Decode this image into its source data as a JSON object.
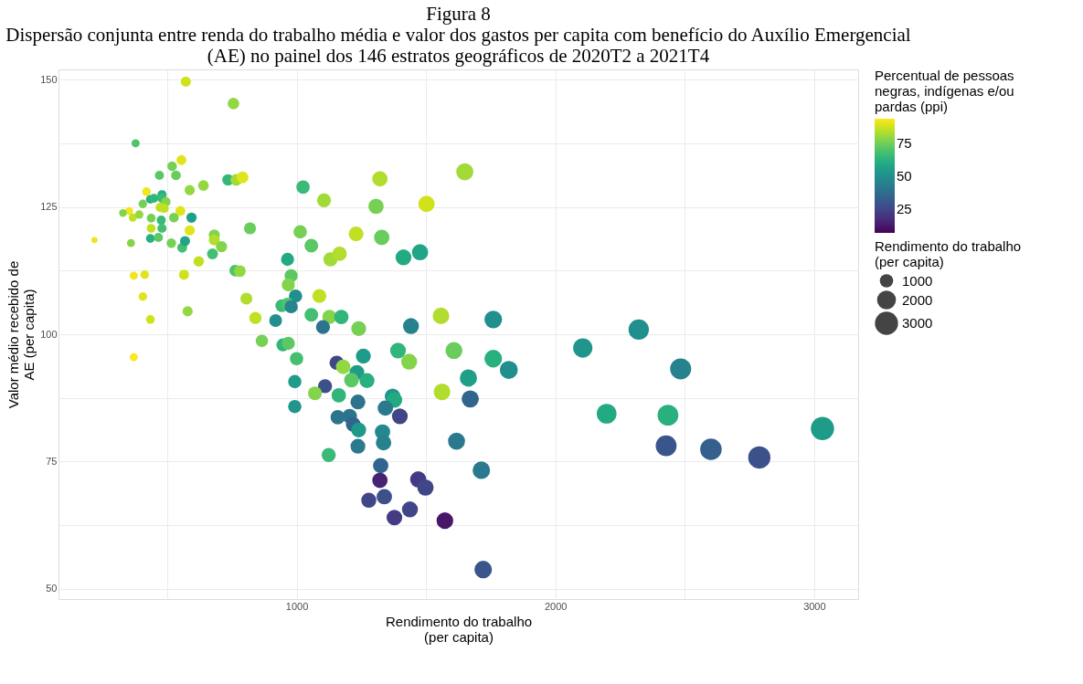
{
  "chart_data": {
    "type": "bubble",
    "title": "Figura 8",
    "subtitle": "Dispersão conjunta entre renda do trabalho média e valor dos gastos per capita com benefício do Auxílio Emergencial (AE) no painel dos 146 estratos geográficos de 2020T2 a 2021T4",
    "xlabel": "Rendimento do trabalho (per capita)",
    "ylabel": "Valor médio recebido de AE (per capita)",
    "legend_title": "Rendimento do trabalho (per capita)",
    "clabel": "Percentual de pessoas negras, indígenas e/ou pardas (ppi)",
    "x": [
      219,
      572,
      756,
      378,
      555,
      519,
      470,
      534,
      640,
      587,
      735,
      767,
      791,
      420,
      406,
      435,
      449,
      480,
      480,
      495,
      473,
      488,
      551,
      353,
      329,
      367,
      392,
      438,
      526,
      594,
      477,
      438,
      480,
      587,
      360,
      435,
      466,
      516,
      558,
      569,
      682,
      682,
      710,
      622,
      675,
      820,
      763,
      781,
      371,
      413,
      565,
      406,
      579,
      435,
      371,
      806,
      841,
      965,
      979,
      968,
      996,
      943,
      965,
      979,
      919,
      866,
      947,
      968,
      1000,
      1025,
      1106,
      1322,
      1650,
      1307,
      1502,
      1014,
      1057,
      1230,
      1329,
      1131,
      1166,
      1413,
      1477,
      1088,
      1057,
      1127,
      1173,
      1102,
      1240,
      1442,
      1558,
      1760,
      1258,
      1392,
      1435,
      1608,
      1760,
      1155,
      1180,
      1233,
      1212,
      1272,
      993,
      1110,
      1071,
      1163,
      1664,
      1562,
      993,
      1237,
      1159,
      1205,
      1219,
      1240,
      1371,
      1378,
      1343,
      1399,
      1124,
      1332,
      1336,
      1237,
      1671,
      1618,
      1714,
      1325,
      1322,
      1470,
      1498,
      1279,
      1339,
      1438,
      1378,
      1573,
      1721,
      1820,
      2322,
      2106,
      2484,
      2198,
      2435,
      3032,
      2428,
      2601,
      2788
    ],
    "values": [
      118.5,
      149.6,
      145.3,
      137.5,
      134.2,
      133,
      131.2,
      131.2,
      129.2,
      128.3,
      130.3,
      130.3,
      130.8,
      128,
      125.6,
      126.5,
      126.7,
      127.4,
      126.7,
      126,
      124.9,
      124.7,
      124.2,
      124.2,
      123.8,
      122.9,
      123.5,
      122.8,
      122.9,
      122.9,
      122.4,
      120.8,
      120.8,
      120.4,
      117.9,
      118.8,
      119,
      117.9,
      117,
      118.3,
      119.5,
      118.5,
      117.2,
      114.3,
      115.8,
      120.8,
      112.5,
      112.4,
      111.5,
      111.7,
      111.7,
      107.4,
      104.5,
      102.9,
      95.5,
      107,
      103.2,
      114.7,
      111.5,
      109.7,
      107.5,
      105.6,
      105.9,
      105.4,
      102.7,
      98.7,
      97.9,
      98.2,
      95.2,
      128.9,
      126.3,
      130.5,
      131.9,
      125.1,
      125.6,
      120.1,
      117.4,
      119.7,
      119,
      114.7,
      115.8,
      115.1,
      116.1,
      107.5,
      103.8,
      103.4,
      103.4,
      101.4,
      101.1,
      101.6,
      103.6,
      102.9,
      95.7,
      96.8,
      94.6,
      96.8,
      95.2,
      94.4,
      93.6,
      92.5,
      91,
      90.9,
      90.7,
      89.8,
      88.4,
      88,
      91.4,
      88.7,
      85.8,
      86.7,
      83.7,
      83.9,
      82.3,
      81.2,
      87.8,
      87.1,
      85.5,
      83.9,
      76.3,
      80.8,
      78.7,
      78,
      87.3,
      79,
      73.3,
      74.2,
      71.3,
      71.5,
      69.9,
      67.4,
      68.1,
      65.6,
      64,
      63.4,
      53.8,
      93,
      100.9,
      97.3,
      93.2,
      84.4,
      84.1,
      81.5,
      78.1,
      77.4,
      75.8
    ],
    "sizes": [
      219,
      572,
      756,
      378,
      555,
      519,
      470,
      534,
      640,
      587,
      735,
      767,
      791,
      420,
      406,
      435,
      449,
      480,
      480,
      495,
      473,
      488,
      551,
      353,
      329,
      367,
      392,
      438,
      526,
      594,
      477,
      438,
      480,
      587,
      360,
      435,
      466,
      516,
      558,
      569,
      682,
      682,
      710,
      622,
      675,
      820,
      763,
      781,
      371,
      413,
      565,
      406,
      579,
      435,
      371,
      806,
      841,
      965,
      979,
      968,
      996,
      943,
      965,
      979,
      919,
      866,
      947,
      968,
      1000,
      1025,
      1106,
      1322,
      1650,
      1307,
      1502,
      1014,
      1057,
      1230,
      1329,
      1131,
      1166,
      1413,
      1477,
      1088,
      1057,
      1127,
      1173,
      1102,
      1240,
      1442,
      1558,
      1760,
      1258,
      1392,
      1435,
      1608,
      1760,
      1155,
      1180,
      1233,
      1212,
      1272,
      993,
      1110,
      1071,
      1163,
      1664,
      1562,
      993,
      1237,
      1159,
      1205,
      1219,
      1240,
      1371,
      1378,
      1343,
      1399,
      1124,
      1332,
      1336,
      1237,
      1671,
      1618,
      1714,
      1325,
      1322,
      1470,
      1498,
      1279,
      1339,
      1438,
      1378,
      1573,
      1721,
      1820,
      2322,
      2106,
      2484,
      2198,
      2435,
      3032,
      2428,
      2601,
      2788
    ],
    "cvalues": [
      92,
      88,
      80,
      70,
      90,
      76,
      72,
      74,
      80,
      80,
      65,
      82,
      90,
      92,
      76,
      62,
      64,
      62,
      66,
      78,
      86,
      86,
      90,
      92,
      78,
      86,
      80,
      76,
      76,
      56,
      66,
      86,
      68,
      90,
      78,
      62,
      72,
      76,
      68,
      58,
      78,
      84,
      78,
      86,
      68,
      74,
      70,
      80,
      92,
      90,
      88,
      90,
      80,
      88,
      94,
      84,
      86,
      60,
      72,
      78,
      50,
      66,
      70,
      46,
      50,
      76,
      64,
      72,
      68,
      66,
      82,
      84,
      82,
      76,
      88,
      76,
      72,
      86,
      74,
      82,
      84,
      60,
      58,
      86,
      68,
      78,
      64,
      40,
      76,
      45,
      84,
      50,
      55,
      64,
      78,
      74,
      62,
      25,
      80,
      55,
      72,
      62,
      55,
      28,
      78,
      64,
      56,
      84,
      52,
      40,
      40,
      40,
      35,
      54,
      52,
      60,
      42,
      25,
      66,
      48,
      45,
      42,
      35,
      42,
      42,
      35,
      15,
      22,
      25,
      25,
      28,
      25,
      22,
      12,
      30,
      50,
      50,
      52,
      45,
      60,
      62,
      55,
      30,
      33,
      28
    ],
    "size_legend": [
      1000,
      2000,
      3000
    ],
    "clim": [
      7,
      94
    ],
    "cticks": [
      25,
      50,
      75
    ],
    "xlim": [
      80,
      3170
    ],
    "xticks": [
      {
        "value": 500,
        "label": null
      },
      1000,
      {
        "value": 1500,
        "label": null
      },
      2000,
      {
        "value": 2500,
        "label": null
      },
      3000
    ],
    "ylim": [
      48,
      152
    ],
    "yticks": [
      50,
      {
        "value": 62.5,
        "label": null
      },
      75,
      {
        "value": 87.5,
        "label": null
      },
      100,
      {
        "value": 112.5,
        "label": null
      },
      125,
      {
        "value": 137.5,
        "label": null
      },
      150
    ],
    "grid": true
  }
}
